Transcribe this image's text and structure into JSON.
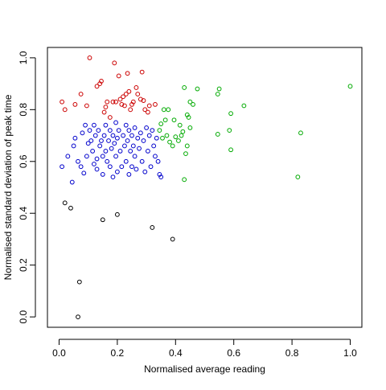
{
  "chart_data": {
    "type": "scatter",
    "title": "",
    "xlabel": "Normalised average reading",
    "ylabel": "Normalised standard deviation of peak time",
    "xlim": [
      -0.04,
      1.04
    ],
    "ylim": [
      -0.04,
      1.04
    ],
    "xticks": [
      0.0,
      0.2,
      0.4,
      0.6,
      0.8,
      1.0
    ],
    "yticks": [
      0.0,
      0.2,
      0.4,
      0.6,
      0.8,
      1.0
    ],
    "x_tick_labels": [
      "0.0",
      "0.2",
      "0.4",
      "0.6",
      "0.8",
      "1.0"
    ],
    "y_tick_labels": [
      "0.0",
      "0.2",
      "0.4",
      "0.6",
      "0.8",
      "1.0"
    ],
    "grid": false,
    "legend": "none",
    "marker": "open-circle",
    "series": [
      {
        "color": "#000000",
        "points": [
          [
            0.02,
            0.44
          ],
          [
            0.04,
            0.42
          ],
          [
            0.07,
            0.135
          ],
          [
            0.065,
            0.0
          ],
          [
            0.15,
            0.375
          ],
          [
            0.2,
            0.395
          ],
          [
            0.32,
            0.345
          ],
          [
            0.39,
            0.3
          ]
        ]
      },
      {
        "color": "#cc0000",
        "points": [
          [
            0.01,
            0.83
          ],
          [
            0.02,
            0.8
          ],
          [
            0.055,
            0.82
          ],
          [
            0.075,
            0.86
          ],
          [
            0.095,
            0.815
          ],
          [
            0.105,
            1.0
          ],
          [
            0.13,
            0.89
          ],
          [
            0.14,
            0.9
          ],
          [
            0.145,
            0.91
          ],
          [
            0.155,
            0.79
          ],
          [
            0.16,
            0.81
          ],
          [
            0.165,
            0.83
          ],
          [
            0.175,
            0.77
          ],
          [
            0.185,
            0.83
          ],
          [
            0.19,
            0.98
          ],
          [
            0.195,
            0.83
          ],
          [
            0.205,
            0.93
          ],
          [
            0.21,
            0.84
          ],
          [
            0.215,
            0.82
          ],
          [
            0.22,
            0.85
          ],
          [
            0.225,
            0.815
          ],
          [
            0.23,
            0.86
          ],
          [
            0.235,
            0.94
          ],
          [
            0.24,
            0.87
          ],
          [
            0.245,
            0.8
          ],
          [
            0.25,
            0.82
          ],
          [
            0.255,
            0.83
          ],
          [
            0.265,
            0.885
          ],
          [
            0.27,
            0.86
          ],
          [
            0.28,
            0.84
          ],
          [
            0.285,
            0.945
          ],
          [
            0.29,
            0.835
          ],
          [
            0.295,
            0.8
          ],
          [
            0.305,
            0.79
          ],
          [
            0.31,
            0.815
          ],
          [
            0.33,
            0.82
          ]
        ]
      },
      {
        "color": "#0000cc",
        "points": [
          [
            0.01,
            0.58
          ],
          [
            0.03,
            0.62
          ],
          [
            0.045,
            0.52
          ],
          [
            0.05,
            0.66
          ],
          [
            0.055,
            0.69
          ],
          [
            0.065,
            0.6
          ],
          [
            0.075,
            0.58
          ],
          [
            0.08,
            0.71
          ],
          [
            0.085,
            0.555
          ],
          [
            0.09,
            0.74
          ],
          [
            0.095,
            0.62
          ],
          [
            0.1,
            0.67
          ],
          [
            0.105,
            0.72
          ],
          [
            0.11,
            0.68
          ],
          [
            0.115,
            0.64
          ],
          [
            0.12,
            0.74
          ],
          [
            0.12,
            0.59
          ],
          [
            0.125,
            0.7
          ],
          [
            0.13,
            0.61
          ],
          [
            0.13,
            0.57
          ],
          [
            0.135,
            0.72
          ],
          [
            0.14,
            0.66
          ],
          [
            0.145,
            0.68
          ],
          [
            0.15,
            0.62
          ],
          [
            0.15,
            0.55
          ],
          [
            0.155,
            0.7
          ],
          [
            0.16,
            0.64
          ],
          [
            0.16,
            0.74
          ],
          [
            0.165,
            0.6
          ],
          [
            0.17,
            0.68
          ],
          [
            0.175,
            0.72
          ],
          [
            0.175,
            0.58
          ],
          [
            0.18,
            0.65
          ],
          [
            0.185,
            0.7
          ],
          [
            0.185,
            0.54
          ],
          [
            0.19,
            0.67
          ],
          [
            0.195,
            0.75
          ],
          [
            0.195,
            0.62
          ],
          [
            0.2,
            0.69
          ],
          [
            0.2,
            0.56
          ],
          [
            0.205,
            0.72
          ],
          [
            0.21,
            0.64
          ],
          [
            0.215,
            0.58
          ],
          [
            0.22,
            0.7
          ],
          [
            0.225,
            0.66
          ],
          [
            0.23,
            0.74
          ],
          [
            0.23,
            0.6
          ],
          [
            0.235,
            0.68
          ],
          [
            0.24,
            0.72
          ],
          [
            0.24,
            0.55
          ],
          [
            0.245,
            0.64
          ],
          [
            0.25,
            0.7
          ],
          [
            0.25,
            0.58
          ],
          [
            0.255,
            0.66
          ],
          [
            0.26,
            0.73
          ],
          [
            0.26,
            0.62
          ],
          [
            0.265,
            0.57
          ],
          [
            0.27,
            0.69
          ],
          [
            0.275,
            0.65
          ],
          [
            0.28,
            0.71
          ],
          [
            0.285,
            0.6
          ],
          [
            0.29,
            0.68
          ],
          [
            0.295,
            0.56
          ],
          [
            0.3,
            0.73
          ],
          [
            0.305,
            0.64
          ],
          [
            0.31,
            0.7
          ],
          [
            0.315,
            0.58
          ],
          [
            0.32,
            0.72
          ],
          [
            0.325,
            0.66
          ],
          [
            0.33,
            0.62
          ],
          [
            0.335,
            0.69
          ],
          [
            0.34,
            0.6
          ],
          [
            0.345,
            0.55
          ],
          [
            0.35,
            0.54
          ]
        ]
      },
      {
        "color": "#00aa00",
        "points": [
          [
            0.345,
            0.72
          ],
          [
            0.35,
            0.745
          ],
          [
            0.355,
            0.69
          ],
          [
            0.36,
            0.8
          ],
          [
            0.365,
            0.76
          ],
          [
            0.37,
            0.7
          ],
          [
            0.375,
            0.8
          ],
          [
            0.38,
            0.675
          ],
          [
            0.39,
            0.66
          ],
          [
            0.395,
            0.76
          ],
          [
            0.4,
            0.695
          ],
          [
            0.41,
            0.68
          ],
          [
            0.415,
            0.74
          ],
          [
            0.42,
            0.7
          ],
          [
            0.425,
            0.715
          ],
          [
            0.43,
            0.885
          ],
          [
            0.435,
            0.63
          ],
          [
            0.44,
            0.78
          ],
          [
            0.445,
            0.77
          ],
          [
            0.45,
            0.73
          ],
          [
            0.45,
            0.83
          ],
          [
            0.46,
            0.82
          ],
          [
            0.475,
            0.88
          ],
          [
            0.43,
            0.53
          ],
          [
            0.44,
            0.66
          ],
          [
            0.545,
            0.705
          ],
          [
            0.545,
            0.86
          ],
          [
            0.55,
            0.88
          ],
          [
            0.585,
            0.72
          ],
          [
            0.59,
            0.645
          ],
          [
            0.59,
            0.785
          ],
          [
            0.635,
            0.815
          ],
          [
            0.82,
            0.54
          ],
          [
            0.83,
            0.71
          ],
          [
            1.0,
            0.89
          ]
        ]
      }
    ]
  }
}
